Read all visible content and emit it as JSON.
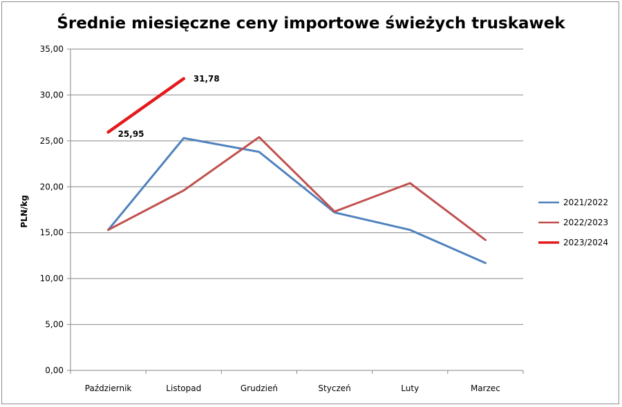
{
  "chart_data": {
    "type": "line",
    "title": "Średnie miesięczne ceny importowe świeżych truskawek",
    "xlabel": "",
    "ylabel": "PLN/kg",
    "categories": [
      "Październik",
      "Listopad",
      "Grudzień",
      "Styczeń",
      "Luty",
      "Marzec"
    ],
    "ylim": [
      0,
      35
    ],
    "yticks": [
      "0,00",
      "5,00",
      "10,00",
      "15,00",
      "20,00",
      "25,00",
      "30,00",
      "35,00"
    ],
    "grid": true,
    "legend_position": "right",
    "series": [
      {
        "name": "2021/2022",
        "color": "#4F81BD",
        "values": [
          15.3,
          25.3,
          23.8,
          17.2,
          15.3,
          11.7
        ]
      },
      {
        "name": "2022/2023",
        "color": "#C0504D",
        "values": [
          15.3,
          19.6,
          25.4,
          17.3,
          20.4,
          14.2
        ]
      },
      {
        "name": "2023/2024",
        "color": "#E31A1C",
        "values": [
          25.95,
          31.78,
          null,
          null,
          null,
          null
        ]
      }
    ],
    "data_labels": [
      {
        "series": "2023/2024",
        "category": "Październik",
        "value": 25.95,
        "text": "25,95"
      },
      {
        "series": "2023/2024",
        "category": "Listopad",
        "value": 31.78,
        "text": "31,78"
      }
    ]
  }
}
